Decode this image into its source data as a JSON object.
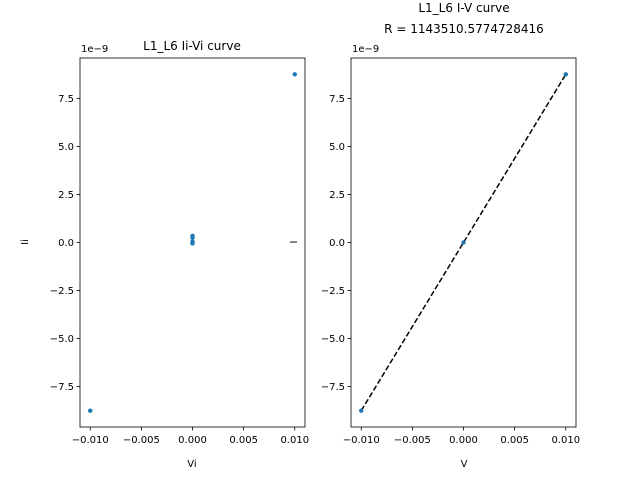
{
  "chart_data": [
    {
      "type": "scatter",
      "title": "L1_L6 Ii-Vi curve",
      "xlabel": "Vi",
      "ylabel": "Ii",
      "y_offset_label": "1e−9",
      "xlim": [
        -0.011,
        0.011
      ],
      "ylim": [
        -9.6,
        9.6
      ],
      "x_ticks": [
        -0.01,
        -0.005,
        0.0,
        0.005,
        0.01
      ],
      "x_tick_labels": [
        "−0.010",
        "−0.005",
        "0.000",
        "0.005",
        "0.010"
      ],
      "y_ticks": [
        -7.5,
        -5.0,
        -2.5,
        0.0,
        2.5,
        5.0,
        7.5
      ],
      "y_tick_labels": [
        "−7.5",
        "−5.0",
        "−2.5",
        "0.0",
        "2.5",
        "5.0",
        "7.5"
      ],
      "series": [
        {
          "x": [
            -0.01,
            0.0,
            0.0,
            0.0,
            0.0,
            0.0,
            0.01
          ],
          "y": [
            -8.75,
            0.35,
            0.25,
            0.05,
            0.0,
            -0.05,
            8.75
          ]
        }
      ],
      "colors": {
        "points": "#1f77b4"
      }
    },
    {
      "type": "scatter",
      "title": "L1_L6 I-V curve\nR = 1143510.5774728416",
      "title_lines": [
        "L1_L6 I-V curve",
        "R = 1143510.5774728416"
      ],
      "xlabel": "V",
      "ylabel": "I",
      "y_offset_label": "1e−9",
      "xlim": [
        -0.011,
        0.011
      ],
      "ylim": [
        -9.6,
        9.6
      ],
      "x_ticks": [
        -0.01,
        -0.005,
        0.0,
        0.005,
        0.01
      ],
      "x_tick_labels": [
        "−0.010",
        "−0.005",
        "0.000",
        "0.005",
        "0.010"
      ],
      "y_ticks": [
        -7.5,
        -5.0,
        -2.5,
        0.0,
        2.5,
        5.0,
        7.5
      ],
      "y_tick_labels": [
        "−7.5",
        "−5.0",
        "−2.5",
        "0.0",
        "2.5",
        "5.0",
        "7.5"
      ],
      "series": [
        {
          "x": [
            -0.01,
            0.0,
            0.01
          ],
          "y": [
            -8.75,
            0.0,
            8.75
          ]
        }
      ],
      "fit_line": {
        "x": [
          -0.01,
          0.01
        ],
        "y": [
          -8.75,
          8.75
        ],
        "style": "dashed"
      },
      "colors": {
        "points": "#1f77b4",
        "fit": "#000000"
      }
    }
  ]
}
